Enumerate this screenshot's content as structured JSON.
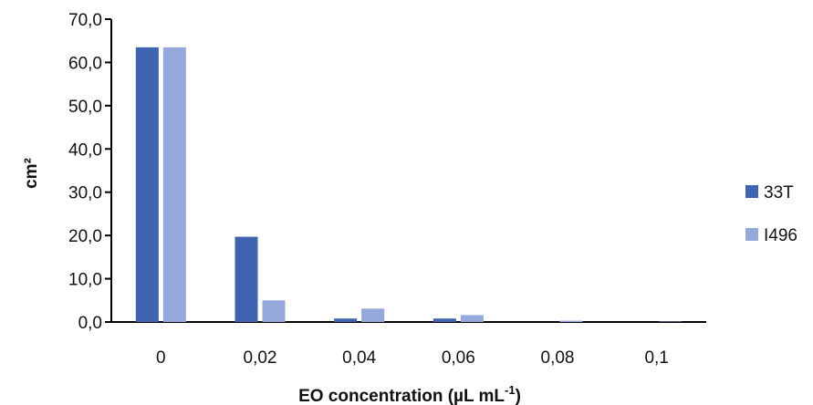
{
  "chart_data": {
    "type": "bar",
    "title": "",
    "xlabel": "EO concentration (µL mL",
    "xlabel_sup": "-1",
    "xlabel_tail": ")",
    "ylabel": "cm²",
    "categories": [
      "0",
      "0,02",
      "0,04",
      "0,06",
      "0,08",
      "0,1"
    ],
    "series": [
      {
        "name": "33T",
        "color": "#3f63b0",
        "values": [
          63.5,
          19.7,
          0.8,
          0.8,
          0.0,
          0.0
        ]
      },
      {
        "name": "I496",
        "color": "#95a8dc",
        "values": [
          63.5,
          5.0,
          3.1,
          1.6,
          0.3,
          0.1
        ]
      }
    ],
    "ylim": [
      0,
      70
    ],
    "yticks": [
      0,
      10,
      20,
      30,
      40,
      50,
      60,
      70
    ],
    "ytick_labels": [
      "0,0",
      "10,0",
      "20,0",
      "30,0",
      "40,0",
      "50,0",
      "60,0",
      "70,0"
    ],
    "grid": false,
    "legend_position": "right"
  }
}
